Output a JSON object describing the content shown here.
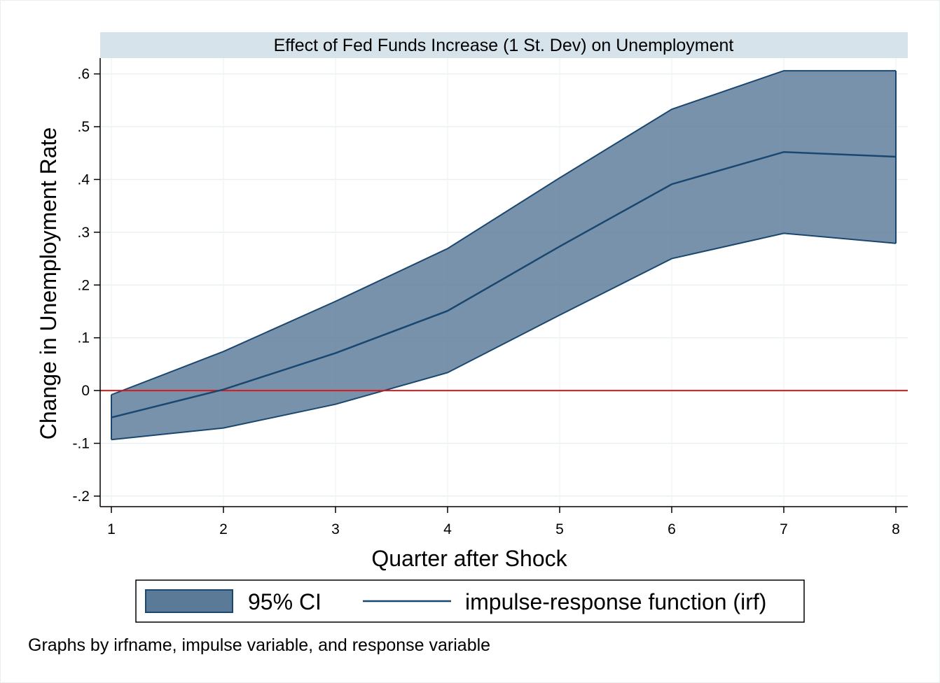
{
  "chart_data": {
    "type": "area",
    "title": "Effect of Fed Funds Increase (1 St. Dev) on Unemployment",
    "xlabel": "Quarter after Shock",
    "ylabel": "Change in Unemployment Rate",
    "x": [
      1,
      2,
      3,
      4,
      5,
      6,
      7,
      8
    ],
    "xticks": [
      "1",
      "2",
      "3",
      "4",
      "5",
      "6",
      "7",
      "8"
    ],
    "yticks": [
      -0.2,
      -0.1,
      0,
      0.1,
      0.2,
      0.3,
      0.4,
      0.5,
      0.6
    ],
    "ytick_labels": [
      "-.2",
      "-.1",
      "0",
      ".1",
      ".2",
      ".3",
      ".4",
      ".5",
      ".6"
    ],
    "xlim": [
      1,
      8
    ],
    "ylim": [
      -0.22,
      0.63
    ],
    "grid": true,
    "reference_line": {
      "y": 0,
      "color": "#d7191c"
    },
    "series": [
      {
        "name": "95% CI",
        "kind": "band",
        "lower": [
          -0.093,
          -0.071,
          -0.026,
          0.034,
          0.143,
          0.25,
          0.298,
          0.279
        ],
        "upper": [
          -0.008,
          0.074,
          0.169,
          0.269,
          0.403,
          0.533,
          0.606,
          0.606
        ],
        "color": "#5b7a98"
      },
      {
        "name": "impulse-response function (irf)",
        "kind": "line",
        "values": [
          -0.051,
          0.002,
          0.071,
          0.151,
          0.273,
          0.391,
          0.452,
          0.443
        ],
        "color": "#1a476f"
      }
    ],
    "legend": {
      "placement": "bottom"
    },
    "note": "Graphs by irfname, impulse variable, and response variable"
  }
}
